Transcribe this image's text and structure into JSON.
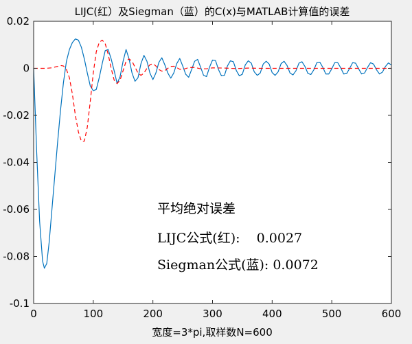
{
  "chart_data": {
    "type": "line",
    "title": "LIJC(红）及Siegman（蓝）的C(x)与MATLAB计算值的误差",
    "xlabel": "宽度=3*pi,取样数N=600",
    "ylabel": "",
    "xlim": [
      0,
      600
    ],
    "ylim": [
      -0.1,
      0.02
    ],
    "xticks": [
      0,
      100,
      200,
      300,
      400,
      500,
      600
    ],
    "yticks": [
      0.02,
      0,
      -0.02,
      -0.04,
      -0.06,
      -0.08,
      -0.1
    ],
    "xtick_labels": [
      "0",
      "100",
      "200",
      "300",
      "400",
      "500",
      "600"
    ],
    "ytick_labels": [
      "0.02",
      "0",
      "-0.02",
      "-0.04",
      "-0.06",
      "-0.08",
      "-0.1"
    ],
    "grid": false,
    "series": [
      {
        "color": "#0072bd",
        "style": "solid",
        "x": [
          0,
          5,
          10,
          15,
          18,
          22,
          26,
          30,
          35,
          40,
          45,
          50,
          55,
          60,
          65,
          70,
          75,
          80,
          85,
          90,
          95,
          100,
          105,
          110,
          115,
          120,
          125,
          130,
          135,
          140,
          145,
          150,
          155,
          160,
          165,
          170,
          175,
          180,
          185,
          190,
          195,
          200,
          205,
          210,
          215,
          220,
          225,
          230,
          235,
          240,
          245,
          250,
          255,
          260,
          265,
          270,
          275,
          280,
          285,
          290,
          295,
          300,
          305,
          310,
          315,
          320,
          325,
          330,
          335,
          340,
          345,
          350,
          355,
          360,
          365,
          370,
          375,
          380,
          385,
          390,
          395,
          400,
          405,
          410,
          415,
          420,
          425,
          430,
          435,
          440,
          445,
          450,
          455,
          460,
          465,
          470,
          475,
          480,
          485,
          490,
          495,
          500,
          505,
          510,
          515,
          520,
          525,
          530,
          535,
          540,
          545,
          550,
          555,
          560,
          565,
          570,
          575,
          580,
          585,
          590,
          595,
          600
        ],
        "y": [
          0,
          -0.035,
          -0.065,
          -0.082,
          -0.085,
          -0.083,
          -0.074,
          -0.062,
          -0.047,
          -0.032,
          -0.018,
          -0.006,
          0.003,
          0.008,
          0.011,
          0.0125,
          0.012,
          0.009,
          0.004,
          -0.002,
          -0.0075,
          -0.0095,
          -0.009,
          -0.004,
          0.002,
          0.0075,
          0.008,
          0.004,
          -0.001,
          -0.0065,
          -0.0035,
          0.003,
          0.008,
          0.004,
          -0.002,
          -0.0055,
          -0.004,
          0.002,
          0.0055,
          0.003,
          -0.002,
          -0.0048,
          -0.002,
          0.0025,
          0.0045,
          0.0015,
          -0.002,
          -0.0042,
          -0.002,
          0.002,
          0.0042,
          0.001,
          -0.0025,
          -0.0038,
          -0.0005,
          0.003,
          0.0038,
          0.0005,
          -0.003,
          -0.0035,
          0.0005,
          0.0035,
          0.0033,
          -0.0005,
          -0.0032,
          -0.003,
          0.001,
          0.0032,
          0.0028,
          -0.001,
          -0.0032,
          -0.0025,
          0.0015,
          0.0032,
          0.0022,
          -0.0015,
          -0.003,
          -0.002,
          0.0018,
          0.003,
          0.0018,
          -0.0018,
          -0.003,
          -0.0015,
          0.002,
          0.003,
          0.0012,
          -0.002,
          -0.0028,
          -0.001,
          0.0022,
          0.0028,
          0.0008,
          -0.0022,
          -0.0026,
          -0.0006,
          0.0024,
          0.0026,
          0.0004,
          -0.0024,
          -0.0024,
          -0.0002,
          0.0024,
          0.0024,
          0.0002,
          -0.0024,
          -0.0022,
          0,
          0.0024,
          0.0022,
          -0.0002,
          -0.0024,
          -0.002,
          0.0004,
          0.0024,
          0.0018,
          -0.0006,
          -0.0024,
          -0.0016,
          0.0008,
          0.0023,
          0.0014
        ]
      },
      {
        "color": "#ff0000",
        "style": "dashed",
        "x": [
          0,
          10,
          20,
          30,
          40,
          45,
          50,
          55,
          60,
          65,
          70,
          75,
          80,
          85,
          90,
          95,
          100,
          105,
          110,
          115,
          120,
          125,
          130,
          135,
          140,
          145,
          150,
          155,
          160,
          165,
          170,
          175,
          180,
          185,
          190,
          195,
          200,
          205,
          210,
          215,
          220,
          225,
          230,
          235,
          240,
          245,
          250,
          260,
          270,
          280,
          290,
          300,
          320,
          340,
          360,
          380,
          400,
          450,
          500,
          550,
          600
        ],
        "y": [
          0,
          0,
          0,
          0.0002,
          0.0008,
          0.0012,
          0.001,
          -0.0005,
          -0.004,
          -0.011,
          -0.02,
          -0.027,
          -0.031,
          -0.031,
          -0.025,
          -0.014,
          -0.002,
          0.007,
          0.011,
          0.012,
          0.0105,
          0.006,
          0,
          -0.005,
          -0.0065,
          -0.005,
          -0.001,
          0.003,
          0.004,
          0.003,
          0.0005,
          -0.002,
          -0.003,
          -0.002,
          0,
          0.0015,
          0.002,
          0.001,
          -0.0005,
          -0.0012,
          -0.001,
          0,
          0.0008,
          0.0009,
          0.0003,
          -0.0004,
          -0.0005,
          0.0003,
          0.0004,
          -0.0002,
          -0.0002,
          0.0002,
          0.0001,
          -0.0001,
          0.0001,
          0,
          0,
          0,
          0,
          0,
          0
        ]
      }
    ],
    "annotations": [
      "平均绝对误差",
      "LIJC公式(红):    0.0027",
      "Siegman公式(蓝): 0.0072"
    ]
  }
}
